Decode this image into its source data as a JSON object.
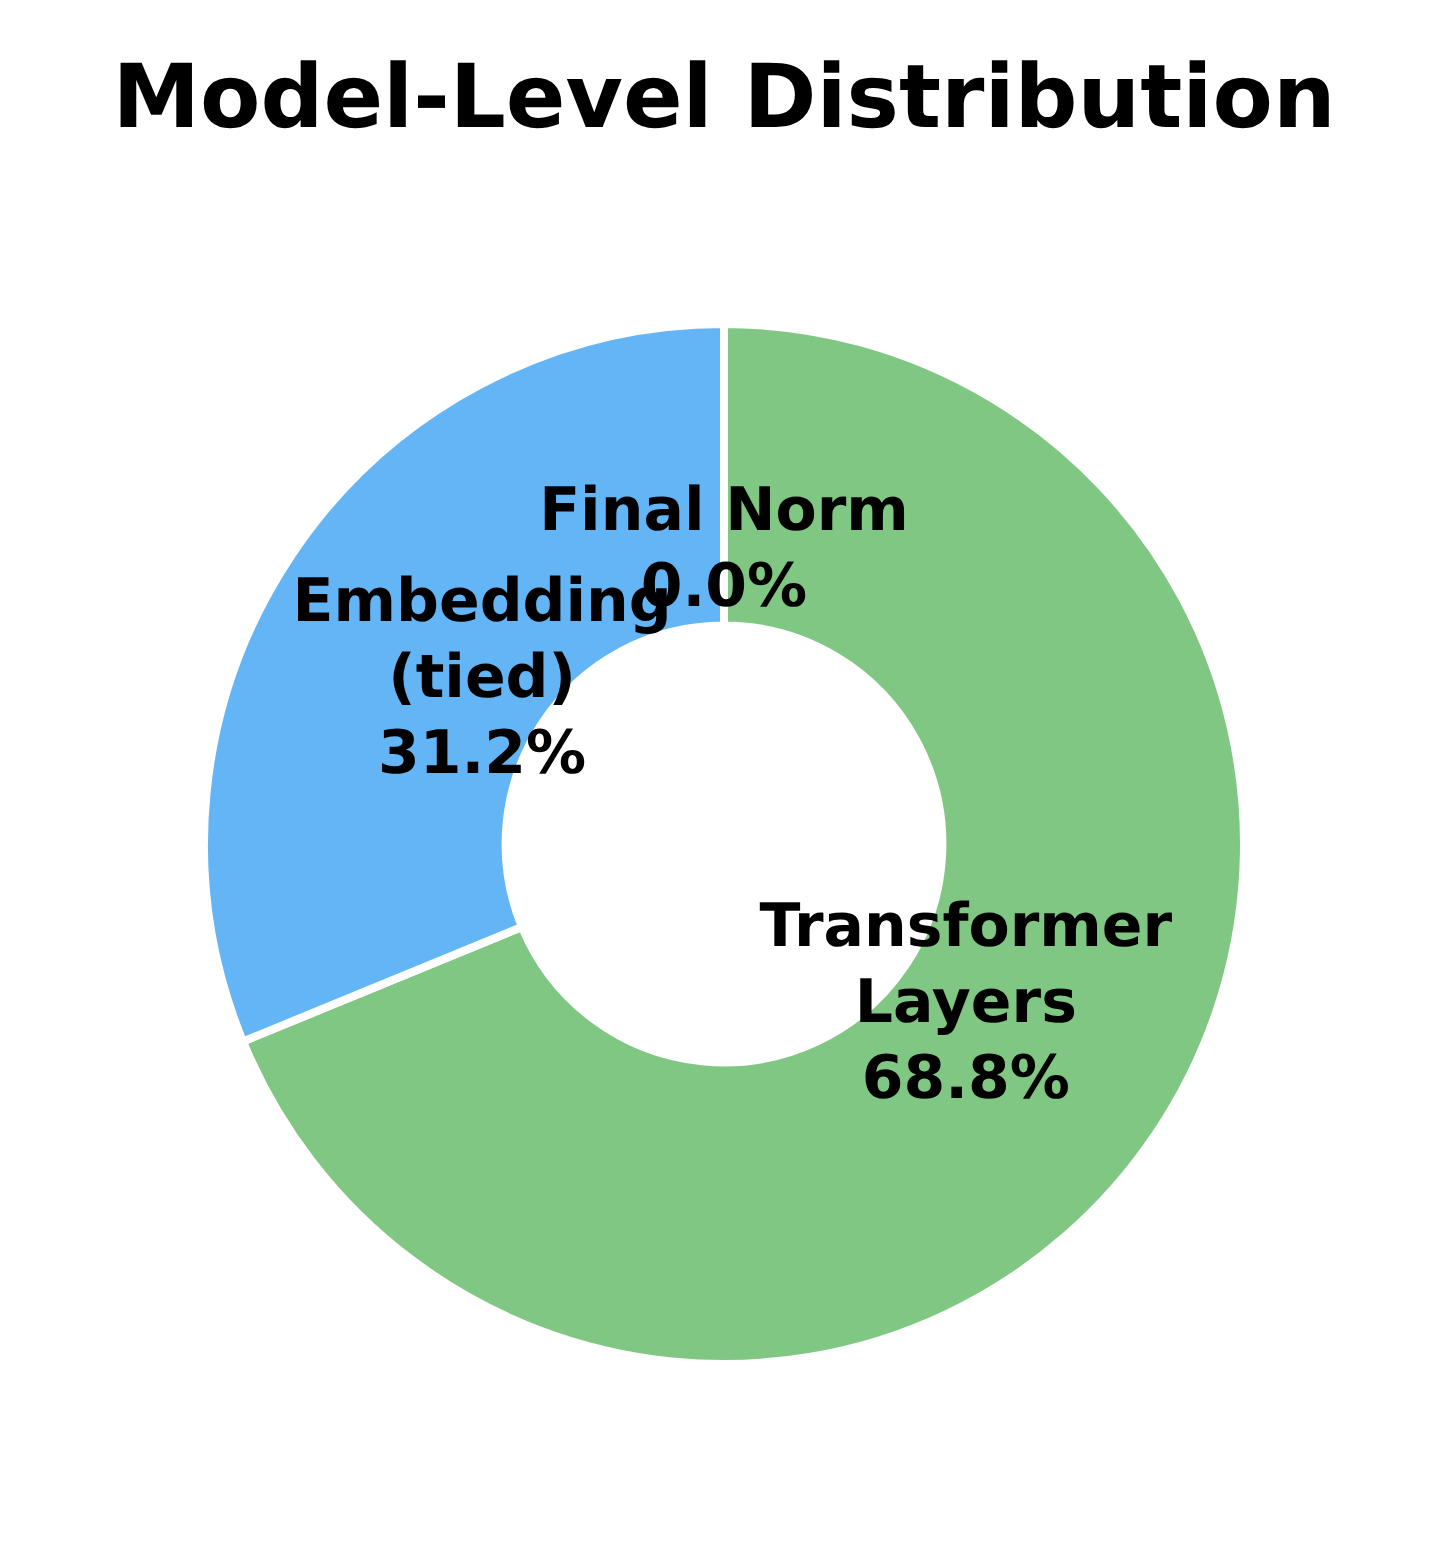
{
  "chart_data": {
    "type": "donut",
    "title": "Model-Level Distribution",
    "categories": [
      "Final Norm",
      "Transformer\nLayers",
      "Embedding\n(tied)"
    ],
    "values": [
      0.0,
      68.8,
      31.2
    ],
    "value_labels": [
      "0.0%",
      "68.8%",
      "31.2%"
    ],
    "colors": [
      "#ffb74d",
      "#81c784",
      "#64b5f6"
    ],
    "legend": false
  }
}
